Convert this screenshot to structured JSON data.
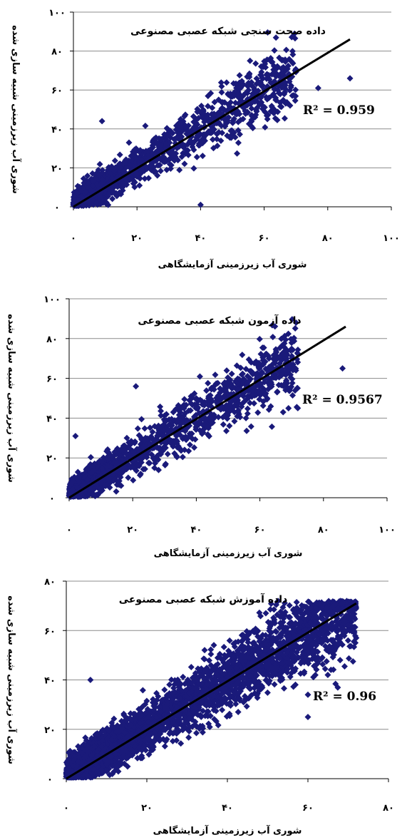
{
  "chart_data": [
    {
      "type": "scatter",
      "title": "داده صحت سنجی شبکه عصبی مصنوعی",
      "xlabel": "شوری آب زیرزمینی آزمایشگاهی",
      "ylabel": "شوری آب زیرزمینی شبیه سازی شده",
      "xlim": [
        0,
        100
      ],
      "ylim": [
        0,
        100
      ],
      "x_ticks": [
        "۰",
        "۲۰",
        "۴۰",
        "۶۰",
        "۸۰",
        "۱۰۰"
      ],
      "y_ticks": [
        "۰",
        "۲۰",
        "۴۰",
        "۶۰",
        "۸۰",
        "۱۰۰"
      ],
      "grid": true,
      "r2_label": "R² = 0.959",
      "fit_line": {
        "x": [
          0,
          87
        ],
        "y": [
          0,
          86
        ]
      },
      "x_max_data": 70,
      "point_color": "#1a1a7a",
      "point_count": 1500,
      "outliers": [
        [
          87,
          66
        ],
        [
          9,
          44
        ],
        [
          40,
          1
        ],
        [
          77,
          61
        ]
      ]
    },
    {
      "type": "scatter",
      "title": "داده آزمون شبکه عصبی مصنوعی",
      "xlabel": "شوری آب زیرزمینی آزمایشگاهی",
      "ylabel": "شوری آب زیرزمینی شبیه سازی شده",
      "xlim": [
        0,
        100
      ],
      "ylim": [
        0,
        100
      ],
      "x_ticks": [
        "۰",
        "۲۰",
        "۴۰",
        "۶۰",
        "۸۰",
        "۱۰۰"
      ],
      "y_ticks": [
        "۰",
        "۲۰",
        "۴۰",
        "۶۰",
        "۸۰",
        "۱۰۰"
      ],
      "grid": true,
      "r2_label": "R² = 0.9567",
      "fit_line": {
        "x": [
          0,
          87
        ],
        "y": [
          0,
          86
        ]
      },
      "x_max_data": 72,
      "point_color": "#1a1a7a",
      "point_count": 1700,
      "outliers": [
        [
          86,
          65
        ],
        [
          21,
          56
        ],
        [
          69,
          45
        ],
        [
          2,
          31
        ]
      ]
    },
    {
      "type": "scatter",
      "title": "داده آموزش شبکه عصبی مصنوعی",
      "xlabel": "شوری آب زیرزمینی آزمایشگاهی",
      "ylabel": "شوری آب زیرزمینی شبیه سازی شده",
      "xlim": [
        0,
        80
      ],
      "ylim": [
        0,
        80
      ],
      "x_ticks": [
        "۰",
        "۲۰",
        "۴۰",
        "۶۰",
        "۸۰"
      ],
      "y_ticks": [
        "۰",
        "۲۰",
        "۴۰",
        "۶۰",
        "۸۰"
      ],
      "grid": true,
      "r2_label": "R² = 0.96",
      "fit_line": {
        "x": [
          0,
          72
        ],
        "y": [
          0,
          71
        ]
      },
      "x_max_data": 72,
      "point_color": "#1a1a7a",
      "point_count": 4500,
      "outliers": [
        [
          6,
          40
        ],
        [
          60,
          25
        ],
        [
          68,
          48
        ],
        [
          60,
          34
        ],
        [
          72,
          57
        ]
      ]
    }
  ]
}
